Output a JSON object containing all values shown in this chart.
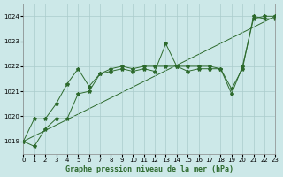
{
  "title": "Graphe pression niveau de la mer (hPa)",
  "bg_color": "#cce8e8",
  "grid_color": "#aacccc",
  "line_color": "#2d6a2d",
  "xlim": [
    0,
    23
  ],
  "ylim": [
    1018.5,
    1024.5
  ],
  "yticks": [
    1019,
    1020,
    1021,
    1022,
    1023,
    1024
  ],
  "xticks": [
    0,
    1,
    2,
    3,
    4,
    5,
    6,
    7,
    8,
    9,
    10,
    11,
    12,
    13,
    14,
    15,
    16,
    17,
    18,
    19,
    20,
    21,
    22,
    23
  ],
  "series1": {
    "x": [
      0,
      1,
      2,
      3,
      4,
      5,
      6,
      7,
      8,
      9,
      10,
      11,
      12,
      13,
      14,
      15,
      16,
      17,
      18,
      19,
      20,
      21,
      22,
      23
    ],
    "y": [
      1019.0,
      1019.9,
      1019.9,
      1020.5,
      1021.3,
      1021.9,
      1021.2,
      1021.7,
      1021.8,
      1021.9,
      1021.8,
      1021.9,
      1021.8,
      1022.9,
      1022.0,
      1021.8,
      1021.9,
      1021.9,
      1021.9,
      1021.1,
      1021.9,
      1024.0,
      1023.9,
      1023.9
    ]
  },
  "series2": {
    "x": [
      0,
      1,
      2,
      3,
      4,
      5,
      6,
      7,
      8,
      9,
      10,
      11,
      12,
      13,
      14,
      15,
      16,
      17,
      18,
      19,
      20,
      21,
      22,
      23
    ],
    "y": [
      1019.0,
      1018.8,
      1019.5,
      1019.9,
      1019.9,
      1020.9,
      1021.0,
      1021.7,
      1021.9,
      1022.0,
      1021.9,
      1022.0,
      1022.0,
      1022.0,
      1022.0,
      1022.0,
      1022.0,
      1022.0,
      1021.9,
      1020.9,
      1022.0,
      1023.9,
      1024.0,
      1024.0
    ]
  },
  "series3": {
    "x": [
      0,
      23
    ],
    "y": [
      1019.0,
      1024.0
    ]
  },
  "lw": 0.7,
  "markersize": 3
}
